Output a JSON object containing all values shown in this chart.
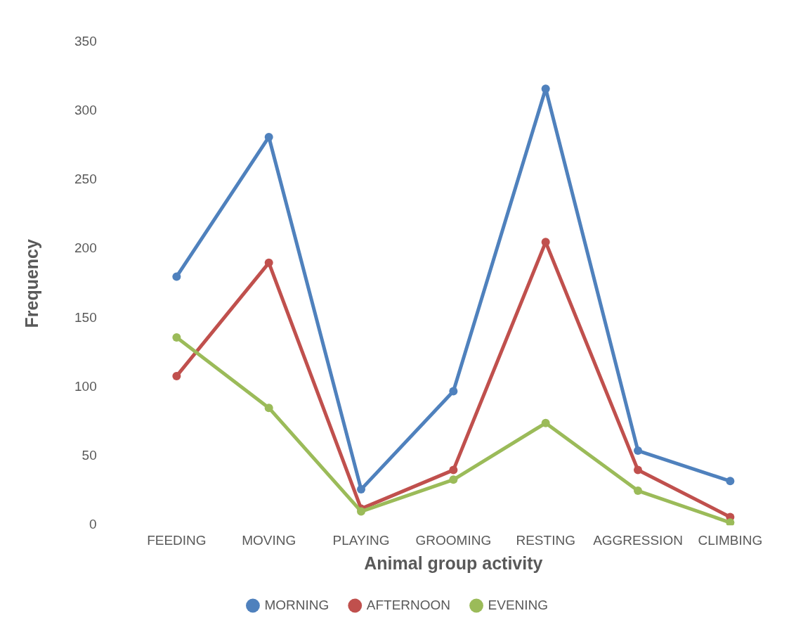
{
  "chart_data": {
    "type": "line",
    "xlabel": "Animal group activity",
    "ylabel": "Frequency",
    "categories": [
      "FEEDING",
      "MOVING",
      "PLAYING",
      "GROOMING",
      "RESTING",
      "AGGRESSION",
      "CLIMBING"
    ],
    "series": [
      {
        "name": "MORNING",
        "color": "#4f81bd",
        "values": [
          180,
          281,
          26,
          97,
          316,
          54,
          32
        ]
      },
      {
        "name": "AFTERNOON",
        "color": "#c0504d",
        "values": [
          108,
          190,
          12,
          40,
          205,
          40,
          6
        ]
      },
      {
        "name": "EVENING",
        "color": "#9bbb59",
        "values": [
          136,
          85,
          10,
          33,
          74,
          25,
          2
        ]
      }
    ],
    "ylim": [
      0,
      350
    ],
    "yticks": [
      0,
      50,
      100,
      150,
      200,
      250,
      300,
      350
    ],
    "grid": false,
    "legend": "bottom",
    "marker": "circle",
    "line_style": "solid"
  }
}
